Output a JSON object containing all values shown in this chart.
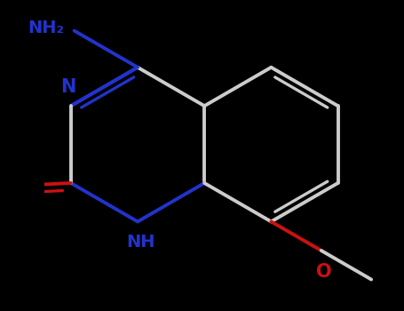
{
  "background_color": "#000000",
  "N_color": "#2233cc",
  "O_color": "#cc1111",
  "bond_color": "#cccccc",
  "label_N_color": "#2233cc",
  "label_O_color": "#cc1111",
  "bond_lw": 2.8,
  "figsize": [
    4.55,
    3.5
  ],
  "dpi": 100,
  "xlim": [
    -3.2,
    3.2
  ],
  "ylim": [
    -2.8,
    2.8
  ]
}
